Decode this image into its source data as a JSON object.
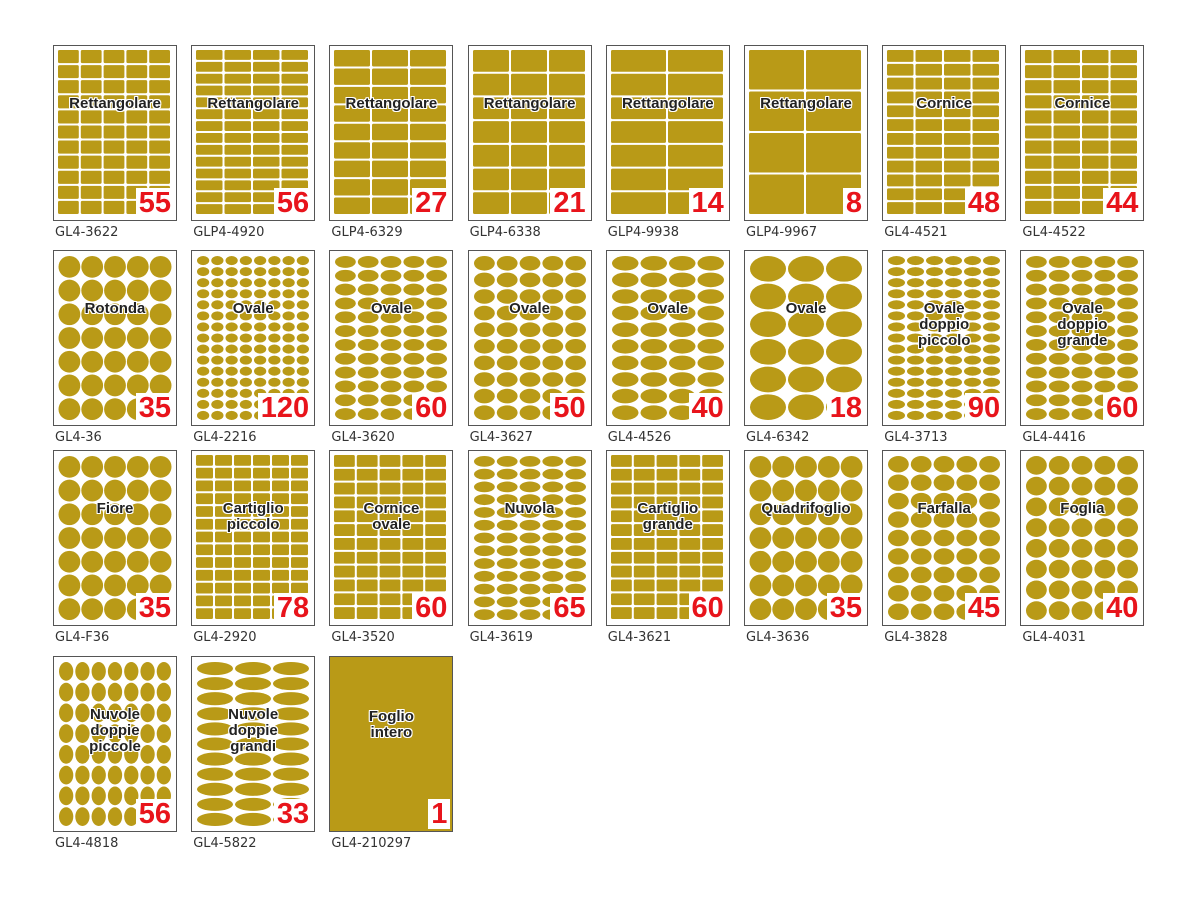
{
  "items": [
    {
      "name": "Rettangolare",
      "count": "55",
      "code": "GL4-3622"
    },
    {
      "name": "Rettangolare",
      "count": "56",
      "code": "GLP4-4920"
    },
    {
      "name": "Rettangolare",
      "count": "27",
      "code": "GLP4-6329"
    },
    {
      "name": "Rettangolare",
      "count": "21",
      "code": "GLP4-6338"
    },
    {
      "name": "Rettangolare",
      "count": "14",
      "code": "GLP4-9938"
    },
    {
      "name": "Rettangolare",
      "count": "8",
      "code": "GLP4-9967"
    },
    {
      "name": "Cornice",
      "count": "48",
      "code": "GL4-4521"
    },
    {
      "name": "Cornice",
      "count": "44",
      "code": "GL4-4522"
    },
    {
      "name": "Rotonda",
      "count": "35",
      "code": "GL4-36"
    },
    {
      "name": "Ovale",
      "count": "120",
      "code": "GL4-2216"
    },
    {
      "name": "Ovale",
      "count": "60",
      "code": "GL4-3620"
    },
    {
      "name": "Ovale",
      "count": "50",
      "code": "GL4-3627"
    },
    {
      "name": "Ovale",
      "count": "40",
      "code": "GL4-4526"
    },
    {
      "name": "Ovale",
      "count": "18",
      "code": "GL4-6342"
    },
    {
      "name": "Ovale doppio piccolo",
      "count": "90",
      "code": "GL4-3713"
    },
    {
      "name": "Ovale doppio grande",
      "count": "60",
      "code": "GL4-4416"
    },
    {
      "name": "Fiore",
      "count": "35",
      "code": "GL4-F36"
    },
    {
      "name": "Cartiglio piccolo",
      "count": "78",
      "code": "GL4-2920"
    },
    {
      "name": "Cornice ovale",
      "count": "60",
      "code": "GL4-3520"
    },
    {
      "name": "Nuvola",
      "count": "65",
      "code": "GL4-3619"
    },
    {
      "name": "Cartiglio grande",
      "count": "60",
      "code": "GL4-3621"
    },
    {
      "name": "Quadrifoglio",
      "count": "35",
      "code": "GL4-3636"
    },
    {
      "name": "Farfalla",
      "count": "45",
      "code": "GL4-3828"
    },
    {
      "name": "Foglia",
      "count": "40",
      "code": "GL4-4031"
    },
    {
      "name": "Nuvole doppie piccole",
      "count": "56",
      "code": "GL4-4818"
    },
    {
      "name": "Nuvole doppie grandi",
      "count": "33",
      "code": "GL4-5822"
    },
    {
      "name": "Foglio intero",
      "count": "1",
      "code": "GL4-210297"
    }
  ]
}
